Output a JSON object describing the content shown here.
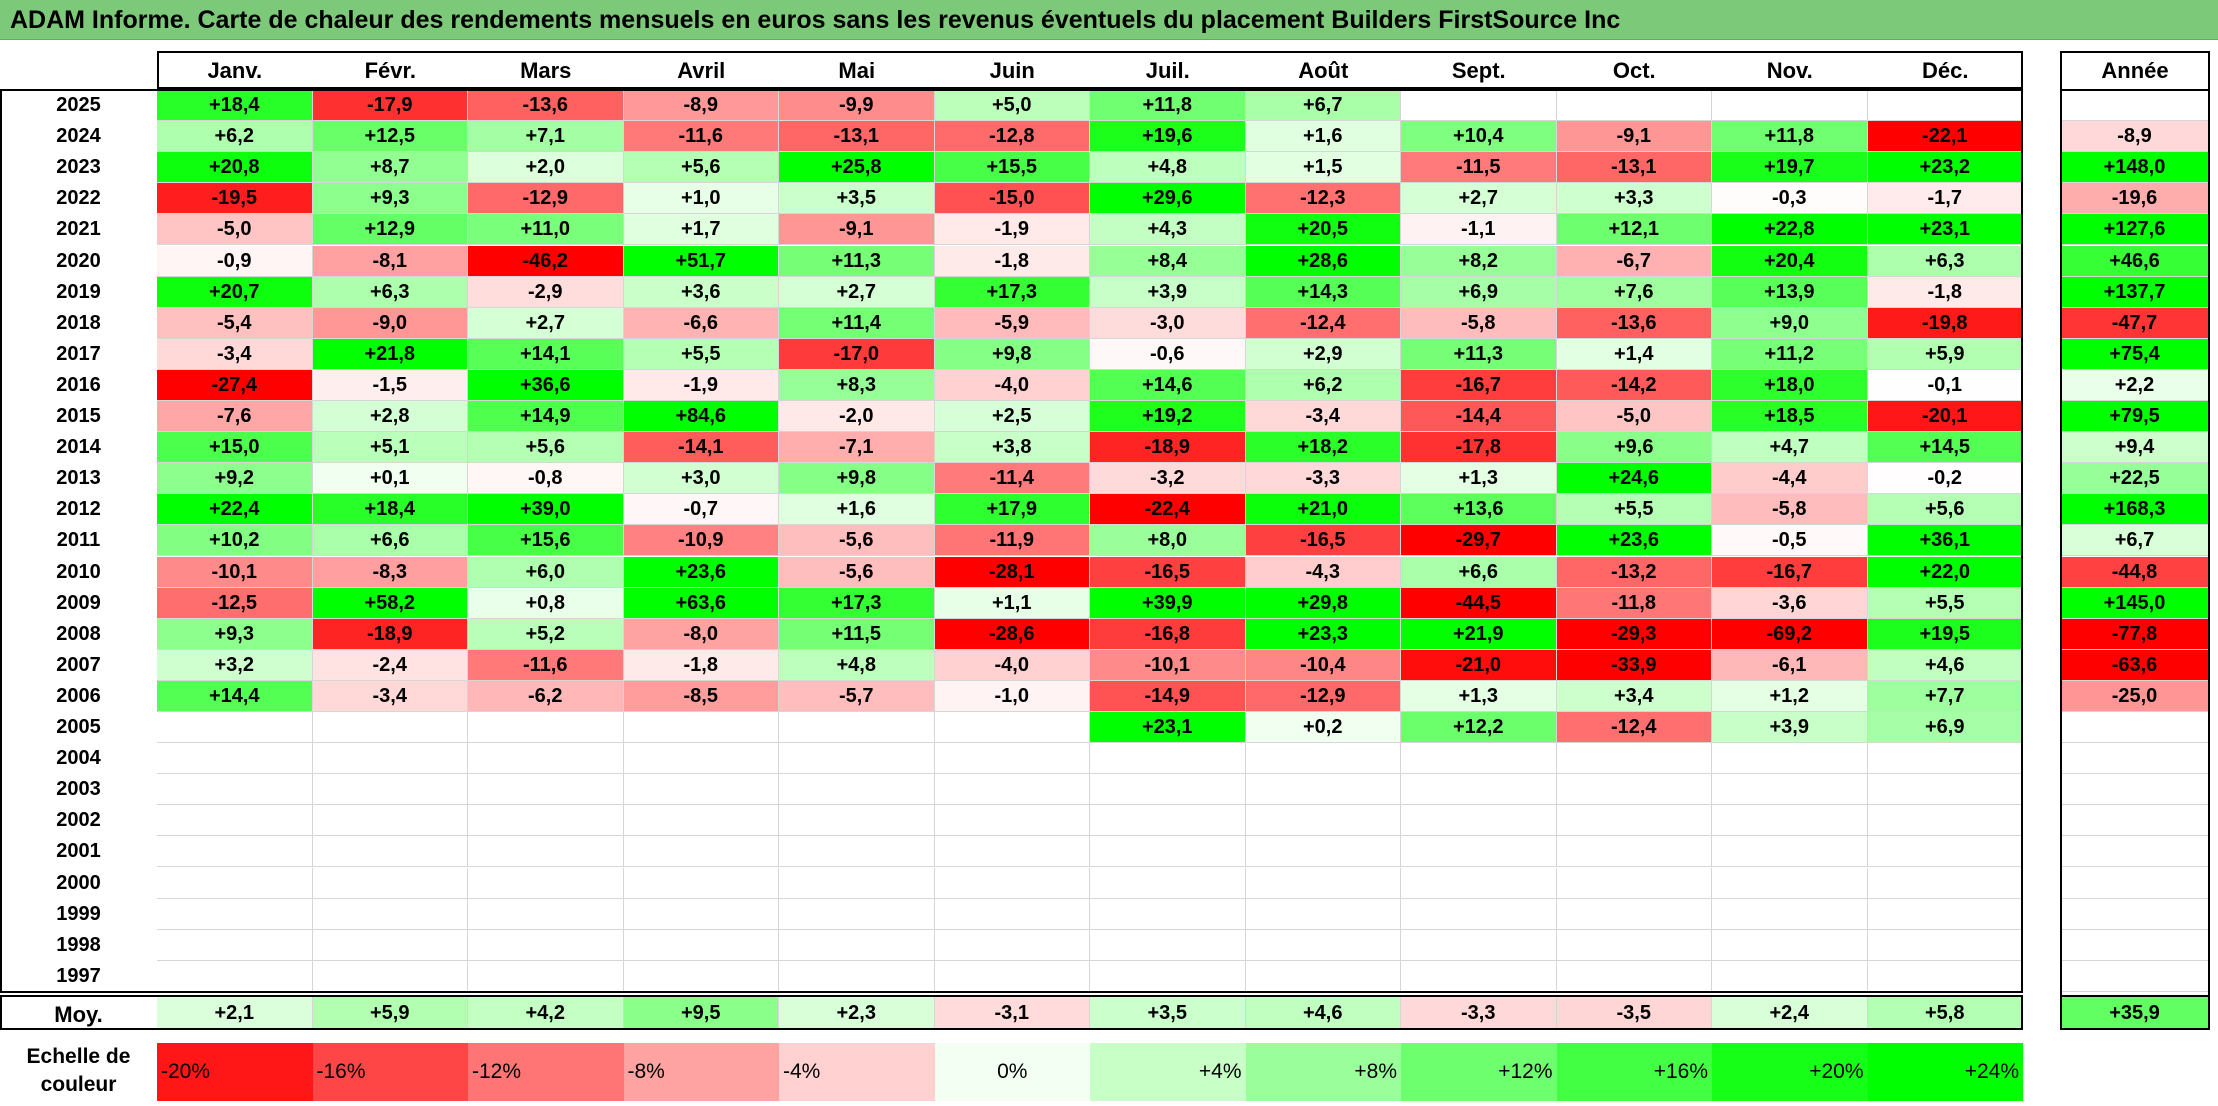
{
  "title": "ADAM Informe. Carte de chaleur des rendements mensuels en euros sans les revenus éventuels du placement Builders FirstSource Inc",
  "chart_data": {
    "type": "heatmap",
    "title": "ADAM Informe. Carte de chaleur des rendements mensuels en euros sans les revenus éventuels du placement Builders FirstSource Inc",
    "months": [
      "Janv.",
      "Févr.",
      "Mars",
      "Avril",
      "Mai",
      "Juin",
      "Juil.",
      "Août",
      "Sept.",
      "Oct.",
      "Nov.",
      "Déc."
    ],
    "year_header": "Année",
    "avg_label": "Moy.",
    "rows": [
      {
        "year": "2025",
        "values": [
          "+18,4",
          "-17,9",
          "-13,6",
          "-8,9",
          "-9,9",
          "+5,0",
          "+11,8",
          "+6,7",
          "",
          "",
          "",
          ""
        ],
        "annual": ""
      },
      {
        "year": "2024",
        "values": [
          "+6,2",
          "+12,5",
          "+7,1",
          "-11,6",
          "-13,1",
          "-12,8",
          "+19,6",
          "+1,6",
          "+10,4",
          "-9,1",
          "+11,8",
          "-22,1"
        ],
        "annual": "-8,9"
      },
      {
        "year": "2023",
        "values": [
          "+20,8",
          "+8,7",
          "+2,0",
          "+5,6",
          "+25,8",
          "+15,5",
          "+4,8",
          "+1,5",
          "-11,5",
          "-13,1",
          "+19,7",
          "+23,2"
        ],
        "annual": "+148,0"
      },
      {
        "year": "2022",
        "values": [
          "-19,5",
          "+9,3",
          "-12,9",
          "+1,0",
          "+3,5",
          "-15,0",
          "+29,6",
          "-12,3",
          "+2,7",
          "+3,3",
          "-0,3",
          "-1,7"
        ],
        "annual": "-19,6"
      },
      {
        "year": "2021",
        "values": [
          "-5,0",
          "+12,9",
          "+11,0",
          "+1,7",
          "-9,1",
          "-1,9",
          "+4,3",
          "+20,5",
          "-1,1",
          "+12,1",
          "+22,8",
          "+23,1"
        ],
        "annual": "+127,6"
      },
      {
        "year": "2020",
        "values": [
          "-0,9",
          "-8,1",
          "-46,2",
          "+51,7",
          "+11,3",
          "-1,8",
          "+8,4",
          "+28,6",
          "+8,2",
          "-6,7",
          "+20,4",
          "+6,3"
        ],
        "annual": "+46,6"
      },
      {
        "year": "2019",
        "values": [
          "+20,7",
          "+6,3",
          "-2,9",
          "+3,6",
          "+2,7",
          "+17,3",
          "+3,9",
          "+14,3",
          "+6,9",
          "+7,6",
          "+13,9",
          "-1,8"
        ],
        "annual": "+137,7"
      },
      {
        "year": "2018",
        "values": [
          "-5,4",
          "-9,0",
          "+2,7",
          "-6,6",
          "+11,4",
          "-5,9",
          "-3,0",
          "-12,4",
          "-5,8",
          "-13,6",
          "+9,0",
          "-19,8"
        ],
        "annual": "-47,7"
      },
      {
        "year": "2017",
        "values": [
          "-3,4",
          "+21,8",
          "+14,1",
          "+5,5",
          "-17,0",
          "+9,8",
          "-0,6",
          "+2,9",
          "+11,3",
          "+1,4",
          "+11,2",
          "+5,9"
        ],
        "annual": "+75,4"
      },
      {
        "year": "2016",
        "values": [
          "-27,4",
          "-1,5",
          "+36,6",
          "-1,9",
          "+8,3",
          "-4,0",
          "+14,6",
          "+6,2",
          "-16,7",
          "-14,2",
          "+18,0",
          "-0,1"
        ],
        "annual": "+2,2"
      },
      {
        "year": "2015",
        "values": [
          "-7,6",
          "+2,8",
          "+14,9",
          "+84,6",
          "-2,0",
          "+2,5",
          "+19,2",
          "-3,4",
          "-14,4",
          "-5,0",
          "+18,5",
          "-20,1"
        ],
        "annual": "+79,5"
      },
      {
        "year": "2014",
        "values": [
          "+15,0",
          "+5,1",
          "+5,6",
          "-14,1",
          "-7,1",
          "+3,8",
          "-18,9",
          "+18,2",
          "-17,8",
          "+9,6",
          "+4,7",
          "+14,5"
        ],
        "annual": "+9,4"
      },
      {
        "year": "2013",
        "values": [
          "+9,2",
          "+0,1",
          "-0,8",
          "+3,0",
          "+9,8",
          "-11,4",
          "-3,2",
          "-3,3",
          "+1,3",
          "+24,6",
          "-4,4",
          "-0,2"
        ],
        "annual": "+22,5"
      },
      {
        "year": "2012",
        "values": [
          "+22,4",
          "+18,4",
          "+39,0",
          "-0,7",
          "+1,6",
          "+17,9",
          "-22,4",
          "+21,0",
          "+13,6",
          "+5,5",
          "-5,8",
          "+5,6"
        ],
        "annual": "+168,3"
      },
      {
        "year": "2011",
        "values": [
          "+10,2",
          "+6,6",
          "+15,6",
          "-10,9",
          "-5,6",
          "-11,9",
          "+8,0",
          "-16,5",
          "-29,7",
          "+23,6",
          "-0,5",
          "+36,1"
        ],
        "annual": "+6,7"
      },
      {
        "year": "2010",
        "values": [
          "-10,1",
          "-8,3",
          "+6,0",
          "+23,6",
          "-5,6",
          "-28,1",
          "-16,5",
          "-4,3",
          "+6,6",
          "-13,2",
          "-16,7",
          "+22,0"
        ],
        "annual": "-44,8"
      },
      {
        "year": "2009",
        "values": [
          "-12,5",
          "+58,2",
          "+0,8",
          "+63,6",
          "+17,3",
          "+1,1",
          "+39,9",
          "+29,8",
          "-44,5",
          "-11,8",
          "-3,6",
          "+5,5"
        ],
        "annual": "+145,0"
      },
      {
        "year": "2008",
        "values": [
          "+9,3",
          "-18,9",
          "+5,2",
          "-8,0",
          "+11,5",
          "-28,6",
          "-16,8",
          "+23,3",
          "+21,9",
          "-29,3",
          "-69,2",
          "+19,5"
        ],
        "annual": "-77,8"
      },
      {
        "year": "2007",
        "values": [
          "+3,2",
          "-2,4",
          "-11,6",
          "-1,8",
          "+4,8",
          "-4,0",
          "-10,1",
          "-10,4",
          "-21,0",
          "-33,9",
          "-6,1",
          "+4,6"
        ],
        "annual": "-63,6"
      },
      {
        "year": "2006",
        "values": [
          "+14,4",
          "-3,4",
          "-6,2",
          "-8,5",
          "-5,7",
          "-1,0",
          "-14,9",
          "-12,9",
          "+1,3",
          "+3,4",
          "+1,2",
          "+7,7"
        ],
        "annual": "-25,0"
      },
      {
        "year": "2005",
        "values": [
          "",
          "",
          "",
          "",
          "",
          "",
          "+23,1",
          "+0,2",
          "+12,2",
          "-12,4",
          "+3,9",
          "+6,9"
        ],
        "annual": ""
      },
      {
        "year": "2004",
        "values": [
          "",
          "",
          "",
          "",
          "",
          "",
          "",
          "",
          "",
          "",
          "",
          ""
        ],
        "annual": ""
      },
      {
        "year": "2003",
        "values": [
          "",
          "",
          "",
          "",
          "",
          "",
          "",
          "",
          "",
          "",
          "",
          ""
        ],
        "annual": ""
      },
      {
        "year": "2002",
        "values": [
          "",
          "",
          "",
          "",
          "",
          "",
          "",
          "",
          "",
          "",
          "",
          ""
        ],
        "annual": ""
      },
      {
        "year": "2001",
        "values": [
          "",
          "",
          "",
          "",
          "",
          "",
          "",
          "",
          "",
          "",
          "",
          ""
        ],
        "annual": ""
      },
      {
        "year": "2000",
        "values": [
          "",
          "",
          "",
          "",
          "",
          "",
          "",
          "",
          "",
          "",
          "",
          ""
        ],
        "annual": ""
      },
      {
        "year": "1999",
        "values": [
          "",
          "",
          "",
          "",
          "",
          "",
          "",
          "",
          "",
          "",
          "",
          ""
        ],
        "annual": ""
      },
      {
        "year": "1998",
        "values": [
          "",
          "",
          "",
          "",
          "",
          "",
          "",
          "",
          "",
          "",
          "",
          ""
        ],
        "annual": ""
      },
      {
        "year": "1997",
        "values": [
          "",
          "",
          "",
          "",
          "",
          "",
          "",
          "",
          "",
          "",
          "",
          ""
        ],
        "annual": ""
      }
    ],
    "averages": [
      "+2,1",
      "+5,9",
      "+4,2",
      "+9,5",
      "+2,3",
      "-3,1",
      "+3,5",
      "+4,6",
      "-3,3",
      "-3,5",
      "+2,4",
      "+5,8"
    ],
    "average_annual": "+35,9",
    "color_scale_label": "Echelle de couleur",
    "color_scale": [
      {
        "label": "-20%",
        "value": -20
      },
      {
        "label": "-16%",
        "value": -16
      },
      {
        "label": "-12%",
        "value": -12
      },
      {
        "label": "-8%",
        "value": -8
      },
      {
        "label": "-4%",
        "value": -4
      },
      {
        "label": "0%",
        "value": 0
      },
      {
        "label": "+4%",
        "value": 4
      },
      {
        "label": "+8%",
        "value": 8
      },
      {
        "label": "+12%",
        "value": 12
      },
      {
        "label": "+16%",
        "value": 16
      },
      {
        "label": "+20%",
        "value": 20
      },
      {
        "label": "+24%",
        "value": 24
      }
    ],
    "colors": {
      "negative_max": "#ff0000",
      "neutral": "#ffffff",
      "positive_max": "#00ff00",
      "title_bg": "#7dc97a"
    }
  }
}
